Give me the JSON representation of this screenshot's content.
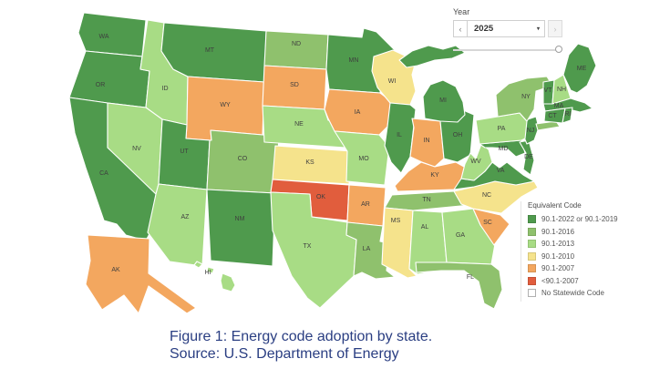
{
  "map_viz": {
    "year_control": {
      "label": "Year",
      "value": "2025",
      "prev_symbol": "‹",
      "next_symbol": "›",
      "caret_symbol": "▾"
    },
    "legend": {
      "title": "Equivalent Code",
      "items": [
        {
          "key": "c2022",
          "label": "90.1-2022 or 90.1-2019",
          "color": "#4f9a4d"
        },
        {
          "key": "c2016",
          "label": "90.1-2016",
          "color": "#8fc16d"
        },
        {
          "key": "c2013",
          "label": "90.1-2013",
          "color": "#a8dc85"
        },
        {
          "key": "c2010",
          "label": "90.1-2010",
          "color": "#f5e38c"
        },
        {
          "key": "c2007",
          "label": "90.1-2007",
          "color": "#f3a75f"
        },
        {
          "key": "pre2007",
          "label": "<90.1-2007",
          "color": "#e15d3d"
        },
        {
          "key": "none",
          "label": "No Statewide Code",
          "color": "#ffffff",
          "outlined": true
        }
      ]
    },
    "chart_data": {
      "type": "choropleth-map",
      "title": "Energy code adoption by state",
      "legend_position": "right",
      "states": [
        {
          "abbr": "WA",
          "code": "c2022"
        },
        {
          "abbr": "OR",
          "code": "c2022"
        },
        {
          "abbr": "CA",
          "code": "c2022"
        },
        {
          "abbr": "MT",
          "code": "c2022"
        },
        {
          "abbr": "UT",
          "code": "c2022"
        },
        {
          "abbr": "NM",
          "code": "c2022"
        },
        {
          "abbr": "MN",
          "code": "c2022"
        },
        {
          "abbr": "IL",
          "code": "c2022"
        },
        {
          "abbr": "MI",
          "code": "c2022"
        },
        {
          "abbr": "OH",
          "code": "c2022"
        },
        {
          "abbr": "VA",
          "code": "c2022"
        },
        {
          "abbr": "MD",
          "code": "c2022"
        },
        {
          "abbr": "DE",
          "code": "c2022"
        },
        {
          "abbr": "NJ",
          "code": "c2022"
        },
        {
          "abbr": "VT",
          "code": "c2022"
        },
        {
          "abbr": "MA",
          "code": "c2022"
        },
        {
          "abbr": "CT",
          "code": "c2022"
        },
        {
          "abbr": "RI",
          "code": "c2022"
        },
        {
          "abbr": "ME",
          "code": "c2022"
        },
        {
          "abbr": "ND",
          "code": "c2016"
        },
        {
          "abbr": "CO",
          "code": "c2016"
        },
        {
          "abbr": "LA",
          "code": "c2016"
        },
        {
          "abbr": "TN",
          "code": "c2016"
        },
        {
          "abbr": "FL",
          "code": "c2016"
        },
        {
          "abbr": "NY",
          "code": "c2016"
        },
        {
          "abbr": "ID",
          "code": "c2013"
        },
        {
          "abbr": "NV",
          "code": "c2013"
        },
        {
          "abbr": "AZ",
          "code": "c2013"
        },
        {
          "abbr": "TX",
          "code": "c2013"
        },
        {
          "abbr": "NE",
          "code": "c2013"
        },
        {
          "abbr": "MO",
          "code": "c2013"
        },
        {
          "abbr": "HI",
          "code": "c2013"
        },
        {
          "abbr": "AL",
          "code": "c2013"
        },
        {
          "abbr": "GA",
          "code": "c2013"
        },
        {
          "abbr": "WV",
          "code": "c2013"
        },
        {
          "abbr": "PA",
          "code": "c2013"
        },
        {
          "abbr": "NH",
          "code": "c2013"
        },
        {
          "abbr": "KS",
          "code": "c2010"
        },
        {
          "abbr": "WI",
          "code": "c2010"
        },
        {
          "abbr": "MS",
          "code": "c2010"
        },
        {
          "abbr": "NC",
          "code": "c2010"
        },
        {
          "abbr": "WY",
          "code": "c2007"
        },
        {
          "abbr": "SD",
          "code": "c2007"
        },
        {
          "abbr": "IA",
          "code": "c2007"
        },
        {
          "abbr": "AR",
          "code": "c2007"
        },
        {
          "abbr": "KY",
          "code": "c2007"
        },
        {
          "abbr": "IN",
          "code": "c2007"
        },
        {
          "abbr": "SC",
          "code": "c2007"
        },
        {
          "abbr": "AK",
          "code": "c2007"
        },
        {
          "abbr": "OK",
          "code": "pre2007"
        }
      ]
    }
  },
  "caption": {
    "line1": "Figure 1: Energy code adoption by state.",
    "line2": "Source: U.S. Department of Energy"
  }
}
